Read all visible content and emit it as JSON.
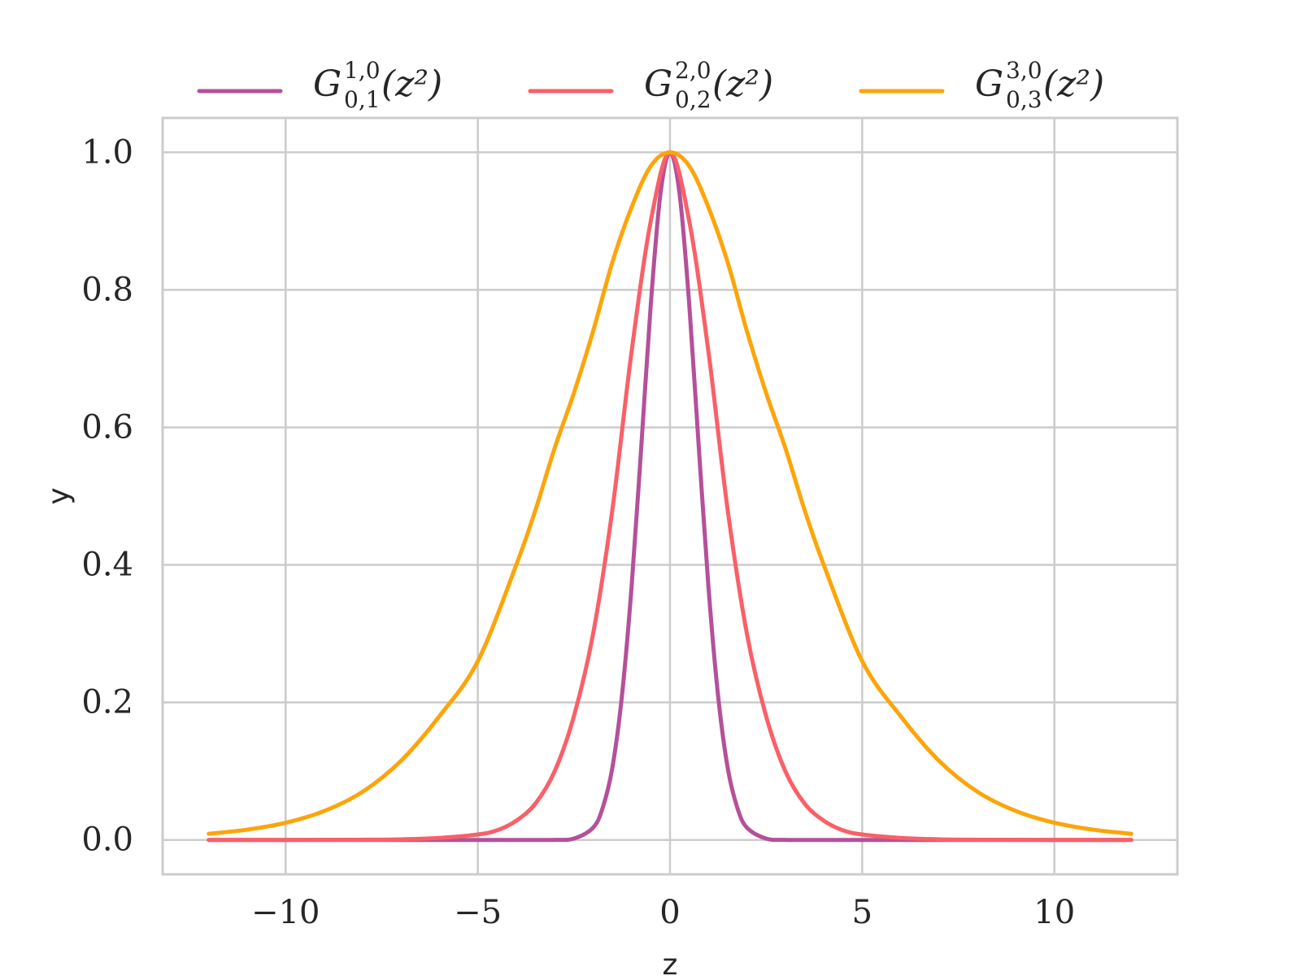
{
  "chart_data": {
    "type": "line",
    "xlabel": "z",
    "ylabel": "y",
    "xlim": [
      -13.2,
      13.2
    ],
    "ylim": [
      -0.05,
      1.05
    ],
    "xticks": [
      -10,
      -5,
      0,
      5,
      10
    ],
    "xtick_labels": [
      "−10",
      "−5",
      "0",
      "5",
      "10"
    ],
    "yticks": [
      0.0,
      0.2,
      0.4,
      0.6,
      0.8,
      1.0
    ],
    "ytick_labels": [
      "0.0",
      "0.2",
      "0.4",
      "0.6",
      "0.8",
      "1.0"
    ],
    "grid": true,
    "legend_position": "top-center",
    "series": [
      {
        "name": "G_{0,1}^{1,0}(z^2)",
        "legend_base": "G",
        "legend_sup": "1,0",
        "legend_sub": "0,1",
        "legend_arg": "(z²)",
        "color": "#b5509a",
        "x": [
          -12,
          -4,
          -3,
          -2.5,
          -2,
          -1.75,
          -1.5,
          -1.25,
          -1,
          -0.75,
          -0.5,
          -0.25,
          0,
          0.25,
          0.5,
          0.75,
          1,
          1.25,
          1.5,
          1.75,
          2,
          2.5,
          3,
          4,
          12
        ],
        "y": [
          0,
          0,
          0.0001,
          0.002,
          0.018,
          0.047,
          0.105,
          0.21,
          0.368,
          0.57,
          0.779,
          0.939,
          1,
          0.939,
          0.779,
          0.57,
          0.368,
          0.21,
          0.105,
          0.047,
          0.018,
          0.002,
          0.0001,
          0,
          0
        ]
      },
      {
        "name": "G_{0,2}^{2,0}(z^2)",
        "legend_base": "G",
        "legend_sup": "2,0",
        "legend_sub": "0,2",
        "legend_arg": "(z²)",
        "color": "#f96068",
        "x": [
          -12,
          -10,
          -8,
          -7,
          -6,
          -5,
          -4.5,
          -4,
          -3.5,
          -3,
          -2.5,
          -2,
          -1.5,
          -1,
          -0.5,
          0,
          0.5,
          1,
          1.5,
          2,
          2.5,
          3,
          3.5,
          4,
          4.5,
          5,
          6,
          7,
          8,
          10,
          12
        ],
        "y": [
          0,
          0,
          0.0003,
          0.0009,
          0.003,
          0.008,
          0.014,
          0.028,
          0.053,
          0.1,
          0.18,
          0.3,
          0.48,
          0.71,
          0.9,
          1,
          0.9,
          0.71,
          0.48,
          0.3,
          0.18,
          0.1,
          0.053,
          0.028,
          0.014,
          0.008,
          0.003,
          0.0009,
          0.0003,
          0,
          0
        ]
      },
      {
        "name": "G_{0,3}^{3,0}(z^2)",
        "legend_base": "G",
        "legend_sup": "3,0",
        "legend_sub": "0,3",
        "legend_arg": "(z²)",
        "color": "#fca50a",
        "x": [
          -12,
          -11,
          -10,
          -9,
          -8,
          -7,
          -6,
          -5,
          -4,
          -3.5,
          -3,
          -2.5,
          -2,
          -1.5,
          -1,
          -0.5,
          0,
          0.5,
          1,
          1.5,
          2,
          2.5,
          3,
          3.5,
          4,
          5,
          6,
          7,
          8,
          9,
          10,
          11,
          12
        ],
        "y": [
          0.009,
          0.015,
          0.025,
          0.042,
          0.07,
          0.115,
          0.18,
          0.26,
          0.4,
          0.48,
          0.57,
          0.65,
          0.74,
          0.84,
          0.92,
          0.98,
          1,
          0.98,
          0.92,
          0.84,
          0.74,
          0.65,
          0.57,
          0.48,
          0.4,
          0.26,
          0.18,
          0.115,
          0.07,
          0.042,
          0.025,
          0.015,
          0.009
        ]
      }
    ]
  }
}
